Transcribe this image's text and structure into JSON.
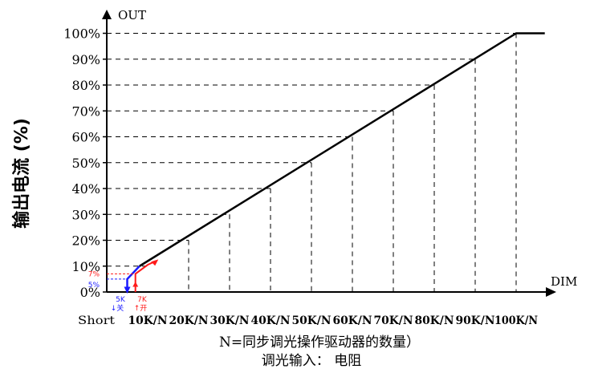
{
  "chart_data": {
    "type": "line",
    "title": "",
    "ylabel": "输出电流 (%)",
    "axis_y_name": "OUT",
    "axis_x_name": "DIM",
    "x_categories": [
      "Short",
      "10K/N",
      "20K/N",
      "30K/N",
      "40K/N",
      "50K/N",
      "60K/N",
      "70K/N",
      "80K/N",
      "90K/N",
      "100K/N"
    ],
    "y_ticks": [
      "0%",
      "10%",
      "20%",
      "30%",
      "40%",
      "50%",
      "60%",
      "70%",
      "80%",
      "90%",
      "100%"
    ],
    "ylim": [
      0,
      100
    ],
    "xlim": [
      0,
      100
    ],
    "series": [
      {
        "values": [
          [
            8,
            10
          ],
          [
            100,
            100
          ],
          [
            107,
            100
          ]
        ]
      }
    ],
    "hysteresis": {
      "off": {
        "x": 5,
        "y": 5,
        "label": "5K",
        "arrow_text": "关",
        "color": "#1a1aff"
      },
      "on": {
        "x": 7,
        "y": 7,
        "label": "7K",
        "arrow_text": "开",
        "color": "#ff1a1a"
      },
      "y_labels": [
        "5%",
        "7%"
      ]
    },
    "grid": "dashed-verticals-to-line",
    "legend": "none"
  },
  "captions": {
    "line1": "N=同步调光操作驱动器的数量）",
    "line2": "调光输入： 电阻"
  }
}
